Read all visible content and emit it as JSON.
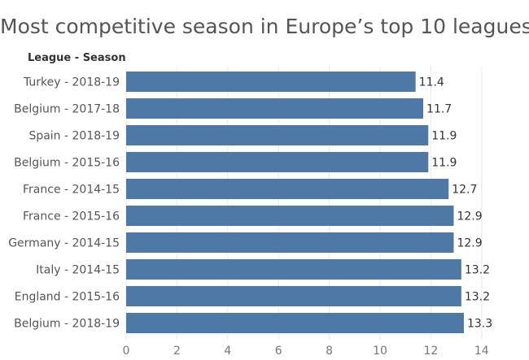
{
  "chart_data": {
    "type": "bar",
    "orientation": "horizontal",
    "title": "Most competitive season in Europe’s top 10 leagues",
    "row_header": "League - Season",
    "categories": [
      "Turkey - 2018-19",
      "Belgium - 2017-18",
      "Spain - 2018-19",
      "Belgium - 2015-16",
      "France - 2014-15",
      "France - 2015-16",
      "Germany - 2014-15",
      "Italy - 2014-15",
      "England - 2015-16",
      "Belgium - 2018-19"
    ],
    "values": [
      11.4,
      11.7,
      11.9,
      11.9,
      12.7,
      12.9,
      12.9,
      13.2,
      13.2,
      13.3
    ],
    "value_labels": [
      "11.4",
      "11.7",
      "11.9",
      "11.9",
      "12.7",
      "12.9",
      "12.9",
      "13.2",
      "13.2",
      "13.3"
    ],
    "xticks": [
      "0",
      "2",
      "4",
      "6",
      "8",
      "10",
      "12",
      "14"
    ],
    "xlim": [
      0,
      14.5
    ],
    "grid": true,
    "bar_color": "#4e79a7"
  }
}
